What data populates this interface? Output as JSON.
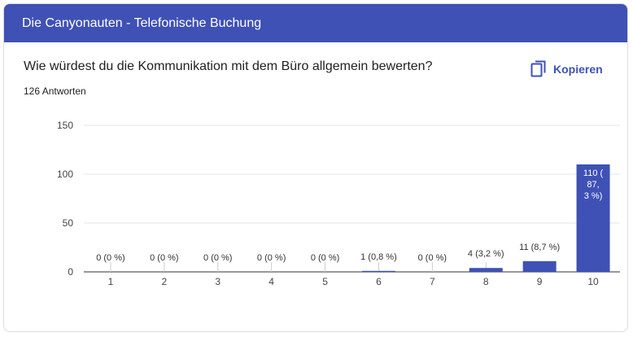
{
  "header": {
    "title": "Die Canyonauten - Telefonische Buchung"
  },
  "question": {
    "title": "Wie würdest du die Kommunikation mit dem Büro allgemein bewerten?",
    "responses": "126 Antworten"
  },
  "actions": {
    "copy_label": "Kopieren",
    "copy_icon": "copy-icon"
  },
  "colors": {
    "header": "#3f51b5",
    "bar": "#3f51b5",
    "accent": "#3f51b5"
  },
  "chart_data": {
    "type": "bar",
    "categories": [
      "1",
      "2",
      "3",
      "4",
      "5",
      "6",
      "7",
      "8",
      "9",
      "10"
    ],
    "values": [
      0,
      0,
      0,
      0,
      0,
      1,
      0,
      4,
      11,
      110
    ],
    "labels": [
      "0 (0 %)",
      "0 (0 %)",
      "0 (0 %)",
      "0 (0 %)",
      "0 (0 %)",
      "1 (0,8 %)",
      "0 (0 %)",
      "4 (3,2 %)",
      "11 (8,7 %)",
      "110 (87,3 %)"
    ],
    "ylim": [
      0,
      150
    ],
    "yticks": [
      0,
      50,
      100,
      150
    ],
    "grid": true,
    "xlabel": "",
    "ylabel": ""
  }
}
